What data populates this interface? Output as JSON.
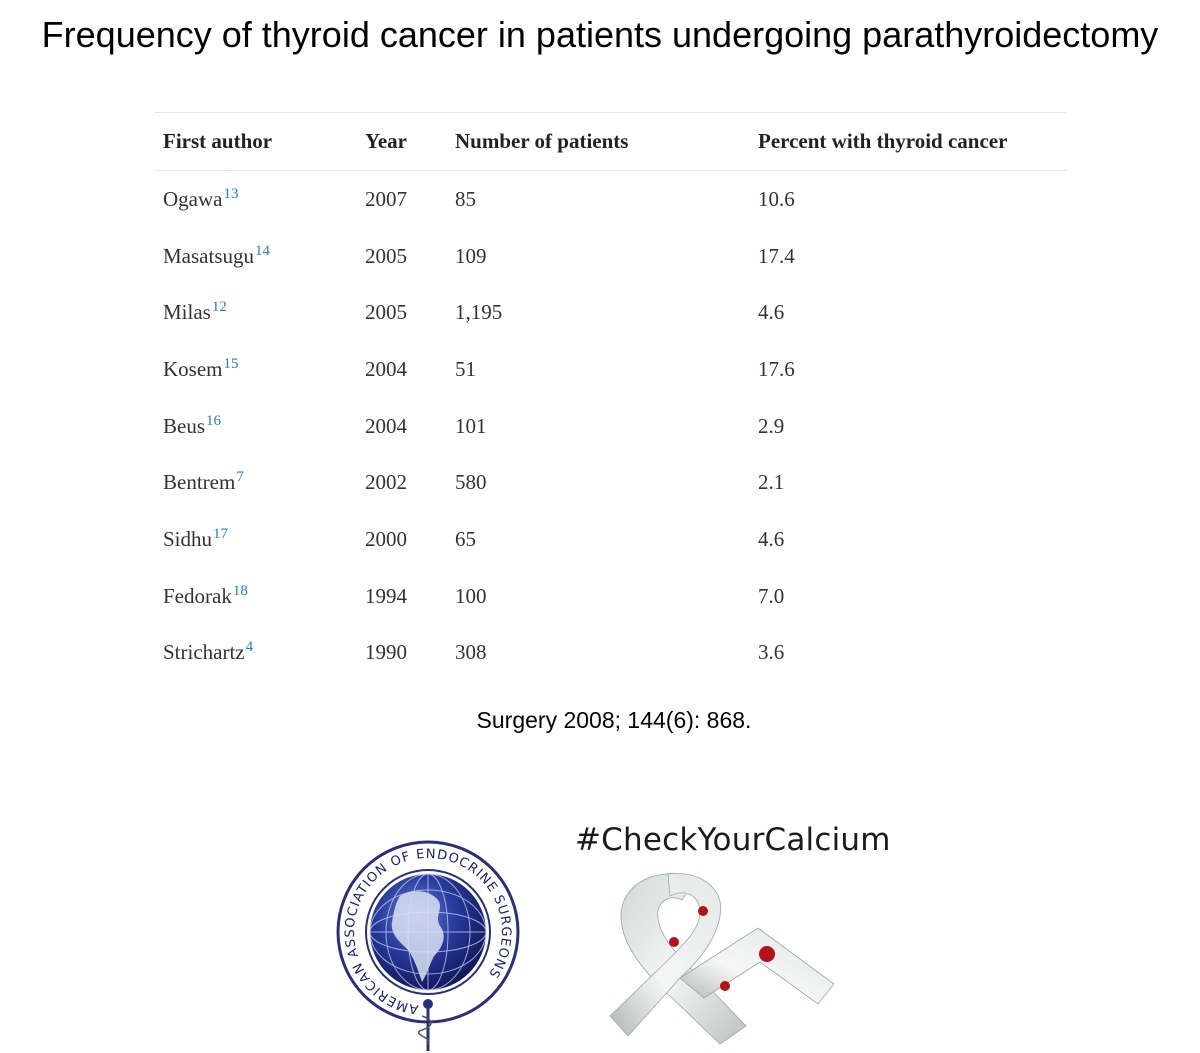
{
  "title": "Frequency of thyroid cancer in patients undergoing parathyroidectomy",
  "table": {
    "headers": [
      "First author",
      "Year",
      "Number of patients",
      "Percent with thyroid cancer"
    ],
    "rows": [
      {
        "author": "Ogawa",
        "ref": "13",
        "year": "2007",
        "patients": "85",
        "percent": "10.6"
      },
      {
        "author": "Masatsugu",
        "ref": "14",
        "year": "2005",
        "patients": "109",
        "percent": "17.4"
      },
      {
        "author": "Milas",
        "ref": "12",
        "year": "2005",
        "patients": "1,195",
        "percent": "4.6"
      },
      {
        "author": "Kosem",
        "ref": "15",
        "year": "2004",
        "patients": "51",
        "percent": "17.6"
      },
      {
        "author": "Beus",
        "ref": "16",
        "year": "2004",
        "patients": "101",
        "percent": "2.9"
      },
      {
        "author": "Bentrem",
        "ref": "7",
        "year": "2002",
        "patients": "580",
        "percent": "2.1"
      },
      {
        "author": "Sidhu",
        "ref": "17",
        "year": "2000",
        "patients": "65",
        "percent": "4.6"
      },
      {
        "author": "Fedorak",
        "ref": "18",
        "year": "1994",
        "patients": "100",
        "percent": "7.0"
      },
      {
        "author": "Strichartz",
        "ref": "4",
        "year": "1990",
        "patients": "308",
        "percent": "3.6"
      }
    ]
  },
  "citation": "Surgery 2008; 144(6): 868.",
  "logo": {
    "name": "aaes-globe-logo",
    "text": "AMERICAN ASSOCIATION OF ENDOCRINE SURGEONS",
    "globe_color": "#1f2f86",
    "ring_color": "#2a2f7a"
  },
  "campaign": {
    "hashtag": "#CheckYourCalcium",
    "icon": "awareness-ribbon-icon",
    "ribbon_color": "#e9eceb",
    "dot_color": "#b3121a"
  }
}
